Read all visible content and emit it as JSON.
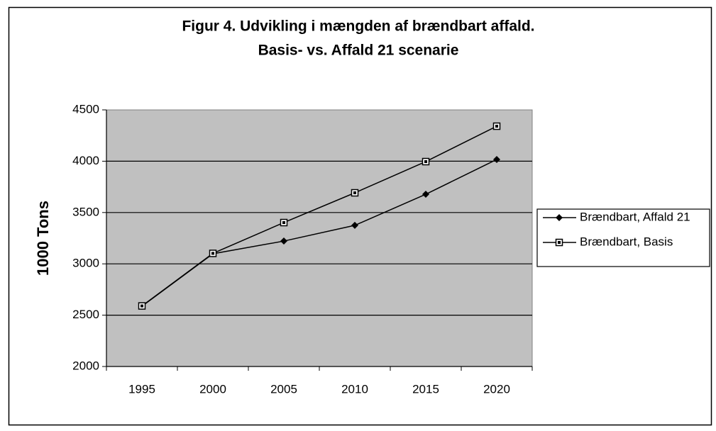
{
  "chart_data": {
    "type": "line",
    "title": "Figur 4. Udvikling i mængden af brændbart affald.",
    "subtitle": "Basis- vs. Affald 21 scenarie",
    "y_label": "1000 Tons",
    "categories": [
      "1995",
      "2000",
      "2005",
      "2010",
      "2015",
      "2020"
    ],
    "series": [
      {
        "name": "Brændbart, Affald 21",
        "color": "#000000",
        "marker": "diamond",
        "values": [
          2587,
          3098,
          3222,
          3375,
          3678,
          4017
        ]
      },
      {
        "name": "Brændbart, Basis",
        "color": "#000000",
        "marker": "square",
        "values": [
          2590,
          3102,
          3402,
          3692,
          3996,
          4341
        ]
      }
    ],
    "ylim": [
      2000,
      4500
    ],
    "yticks": [
      2000,
      2500,
      3000,
      3500,
      4000,
      4500
    ],
    "grid": true,
    "legend": "right",
    "plot_background": "#c0c0c0"
  }
}
